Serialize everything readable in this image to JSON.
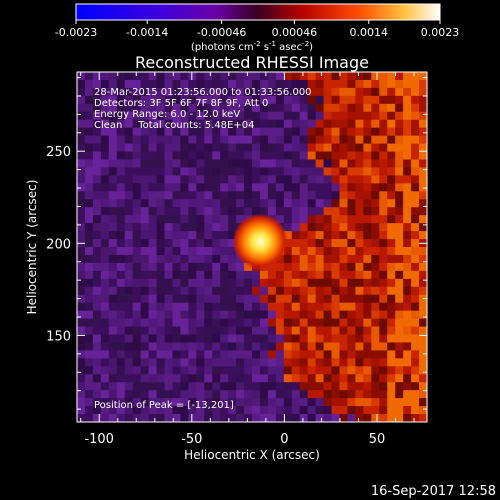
{
  "chart_data": {
    "type": "heatmap",
    "title": "Reconstructed RHESSI Image",
    "xlabel": "Heliocentric X (arcsec)",
    "ylabel": "Heliocentric Y (arcsec)",
    "xlim": [
      -112,
      77
    ],
    "ylim": [
      103,
      293
    ],
    "x_ticks": [
      "-100",
      "-50",
      "0",
      "50"
    ],
    "x_tick_values": [
      -100,
      -50,
      0,
      50
    ],
    "y_ticks": [
      "150",
      "200",
      "250"
    ],
    "y_tick_values": [
      150,
      200,
      250
    ],
    "colorbar": {
      "min": -0.0023,
      "max": 0.0023,
      "tick_labels": [
        "-0.0023",
        "-0.0014",
        "-0.00046",
        "0.00046",
        "0.0014",
        "0.0023"
      ],
      "tick_values": [
        -0.0023,
        -0.0014,
        -0.00046,
        0.00046,
        0.0014,
        0.0023
      ],
      "units_prefix": "(photons cm",
      "units_exp1": "-2",
      "units_mid": " s",
      "units_exp2": "-1",
      "units_mid2": " asec",
      "units_exp3": "-2",
      "units_suffix": ")"
    },
    "annotations": {
      "time_range": "28-Mar-2015 01:23:56.000 to 01:33:56.000",
      "detectors": "Detectors: 3F 5F 6F 7F 8F 9F, Att 0",
      "energy": "Energy Range: 6.0 - 12.0 keV",
      "clean": "Clean     Total counts: 5.48E+04",
      "peak": "Position of Peak = [-13,201]"
    },
    "peak_position": [
      -13,
      201
    ],
    "grid": false
  },
  "footer": {
    "date": "16-Sep-2017 12:58"
  },
  "colors": {
    "background": "#000000",
    "text": "#ffffff"
  }
}
